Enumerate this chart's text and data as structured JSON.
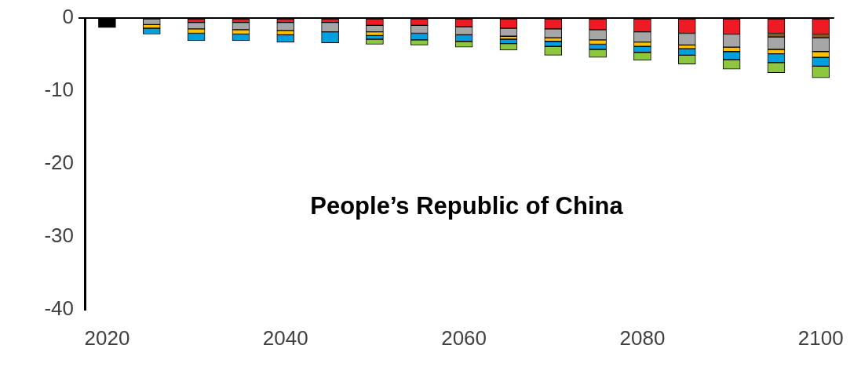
{
  "chart_data": {
    "type": "bar",
    "title": "People’s Republic of China",
    "stacked": true,
    "x": [
      2020,
      2025,
      2030,
      2035,
      2040,
      2045,
      2050,
      2055,
      2060,
      2065,
      2070,
      2075,
      2080,
      2085,
      2090,
      2095,
      2100
    ],
    "xlim": [
      2017.5,
      2101.5
    ],
    "xticks": [
      2020,
      2040,
      2060,
      2080,
      2100
    ],
    "ylim": [
      -40,
      0
    ],
    "yticks": [
      -40,
      -30,
      -20,
      -10,
      0
    ],
    "grid": false,
    "legend": false,
    "series": [
      {
        "color": "#000000",
        "values": [
          -1.3,
          null,
          null,
          null,
          null,
          null,
          null,
          null,
          null,
          null,
          null,
          null,
          null,
          null,
          null,
          null,
          null
        ]
      },
      {
        "color": "#ed1c24",
        "values": [
          null,
          null,
          -0.6,
          -0.6,
          -0.6,
          -0.6,
          -1.0,
          -1.0,
          -1.2,
          -1.4,
          -1.5,
          -1.6,
          -1.9,
          -2.1,
          -2.2,
          -2.1,
          -2.2
        ]
      },
      {
        "color": "#8b5a2b",
        "values": [
          null,
          null,
          null,
          null,
          null,
          null,
          null,
          null,
          null,
          null,
          null,
          null,
          null,
          null,
          null,
          -0.5,
          -0.5
        ]
      },
      {
        "color": "#a6a6a6",
        "values": [
          null,
          -0.9,
          -0.9,
          -1.0,
          -1.1,
          -1.3,
          -0.9,
          -1.1,
          -1.1,
          -1.1,
          -1.2,
          -1.4,
          -1.4,
          -1.6,
          -1.8,
          -1.7,
          -1.9
        ]
      },
      {
        "color": "#ffc000",
        "values": [
          null,
          -0.5,
          -0.6,
          -0.6,
          -0.6,
          null,
          -0.5,
          null,
          null,
          -0.4,
          -0.5,
          -0.6,
          -0.6,
          -0.5,
          -0.6,
          -0.6,
          -0.8
        ]
      },
      {
        "color": "#00a0e0",
        "values": [
          null,
          -0.8,
          -1.0,
          -0.9,
          -1.0,
          -1.5,
          -0.5,
          -0.9,
          -0.9,
          -0.6,
          -0.7,
          -0.7,
          -0.8,
          -0.9,
          -1.1,
          -1.2,
          -1.2
        ]
      },
      {
        "color": "#8dc63f",
        "values": [
          null,
          null,
          null,
          null,
          null,
          null,
          -0.7,
          -0.7,
          -0.8,
          -0.9,
          -1.2,
          -1.1,
          -1.1,
          -1.2,
          -1.3,
          -1.4,
          -1.6
        ]
      }
    ]
  }
}
